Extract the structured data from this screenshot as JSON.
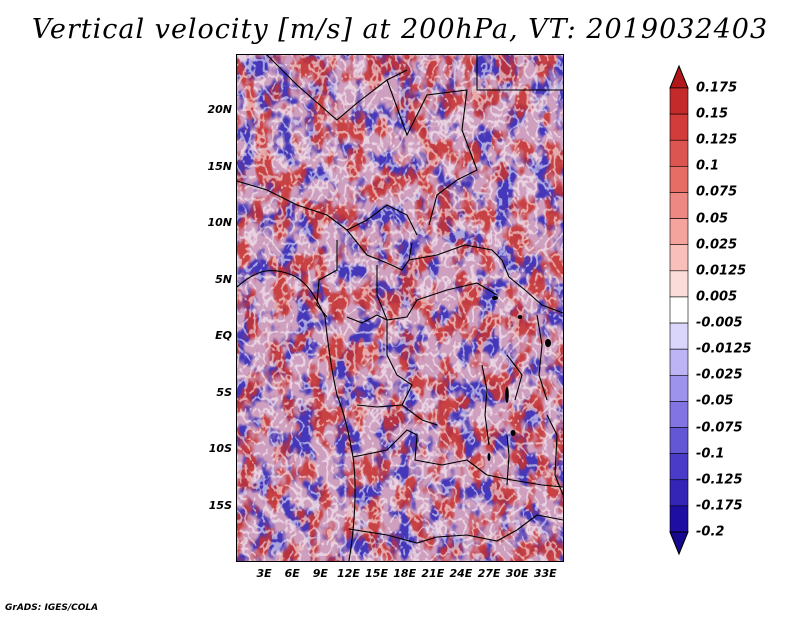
{
  "title": "Vertical velocity [m/s] at 200hPa, VT: 2019032403",
  "footer": "GrADS: IGES/COLA",
  "map": {
    "lon_range": [
      0,
      35
    ],
    "lat_range": [
      -20,
      25
    ],
    "lon_tick_labels": [
      {
        "lon": 3,
        "label": "3E"
      },
      {
        "lon": 6,
        "label": "6E"
      },
      {
        "lon": 9,
        "label": "9E"
      },
      {
        "lon": 12,
        "label": "12E"
      },
      {
        "lon": 15,
        "label": "15E"
      },
      {
        "lon": 18,
        "label": "18E"
      },
      {
        "lon": 21,
        "label": "21E"
      },
      {
        "lon": 24,
        "label": "24E"
      },
      {
        "lon": 27,
        "label": "27E"
      },
      {
        "lon": 30,
        "label": "30E"
      },
      {
        "lon": 33,
        "label": "33E"
      }
    ],
    "lat_tick_labels": [
      {
        "lat": 20,
        "label": "20N"
      },
      {
        "lat": 15,
        "label": "15N"
      },
      {
        "lat": 10,
        "label": "10N"
      },
      {
        "lat": 5,
        "label": "5N"
      },
      {
        "lat": 0,
        "label": "EQ"
      },
      {
        "lat": -5,
        "label": "5S"
      },
      {
        "lat": -10,
        "label": "10S"
      },
      {
        "lat": -15,
        "label": "15S"
      }
    ]
  },
  "colorbar": {
    "labels": [
      "0.175",
      "0.15",
      "0.125",
      "0.1",
      "0.075",
      "0.05",
      "0.025",
      "0.0125",
      "0.005",
      "-0.005",
      "-0.0125",
      "-0.025",
      "-0.05",
      "-0.075",
      "-0.1",
      "-0.125",
      "-0.175",
      "-0.2"
    ],
    "colors": [
      "#b2181b",
      "#c52a2a",
      "#d23d3b",
      "#dd5550",
      "#e66d66",
      "#ee8882",
      "#f4a39d",
      "#f9c0bb",
      "#fcdcd8",
      "#ffffff",
      "#dad6fb",
      "#bcb4f4",
      "#9e93ec",
      "#8274e2",
      "#6457d6",
      "#4a3bc8",
      "#3425b6",
      "#1e0fa2",
      "#170890"
    ]
  },
  "colors": {
    "positive": "#d8504a",
    "negative": "#4a46c8",
    "border": "#000000"
  }
}
